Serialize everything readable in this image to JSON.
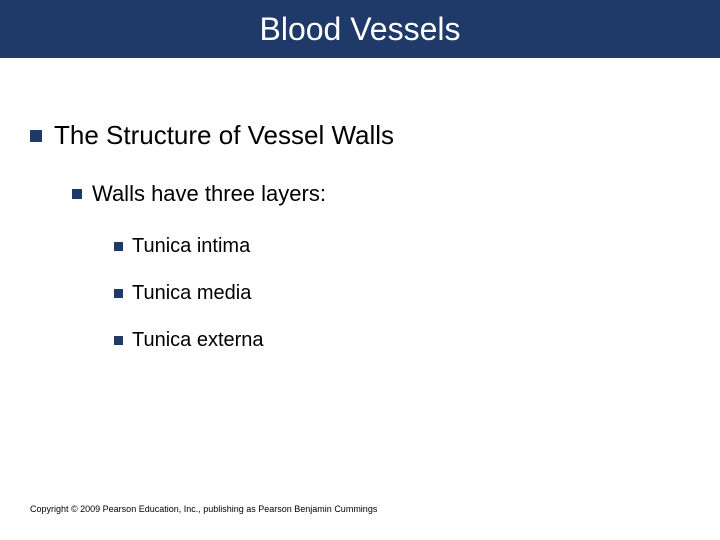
{
  "title": "Blood Vessels",
  "title_bar_color": "#1f3a68",
  "title_text_color": "#ffffff",
  "bullet_color": "#1f3a68",
  "background_color": "#ffffff",
  "text_color": "#000000",
  "bullets": {
    "l1": "The Structure of Vessel Walls",
    "l2": "Walls have three layers:",
    "l3a": "Tunica intima",
    "l3b": "Tunica media",
    "l3c": "Tunica externa"
  },
  "footer": "Copyright © 2009 Pearson Education, Inc., publishing as Pearson Benjamin Cummings",
  "fontsizes": {
    "title": 32,
    "l1": 26,
    "l2": 22,
    "l3": 20,
    "footer": 9
  }
}
